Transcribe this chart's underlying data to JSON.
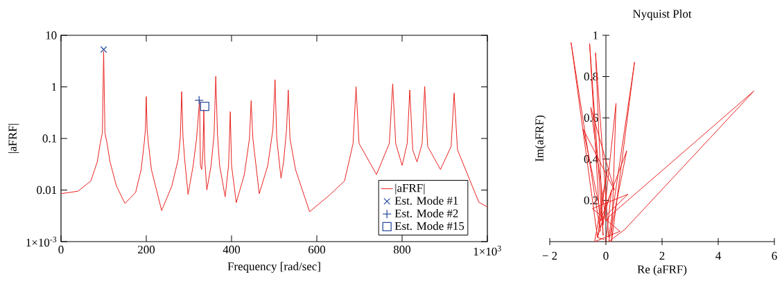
{
  "chart_data": [
    {
      "type": "line",
      "xlabel": "Frequency [rad/sec]",
      "ylabel": "|aFRF|",
      "log": "y",
      "legend": "bottom right",
      "xlim": [
        0,
        1000
      ],
      "ylim": [
        0.001,
        10
      ],
      "xticks": [
        0,
        200,
        400,
        600,
        800,
        {
          "value": 1000,
          "label": "1×10$^{3}$"
        }
      ],
      "yticks": [
        {
          "value": 0.001,
          "label": "1×10$^{-3}$"
        },
        0.01,
        0.1,
        1,
        10
      ],
      "series": [
        {
          "name": "|aFRF|",
          "color": "#e8211d",
          "marker": "none",
          "x": [
            0,
            40,
            70,
            85,
            92,
            97,
            100,
            103,
            108,
            115,
            130,
            150,
            175,
            188,
            195,
            198,
            200,
            202,
            205,
            212,
            236,
            260,
            275,
            280,
            283,
            286,
            290,
            298,
            310,
            318,
            325,
            327,
            330,
            333,
            335,
            337,
            342,
            352,
            359,
            363,
            367,
            372,
            385,
            393,
            397,
            400,
            411,
            430,
            442,
            446,
            450,
            465,
            485,
            497,
            502,
            506,
            516,
            522,
            529,
            533,
            537,
            550,
            583,
            630,
            665,
            685,
            692,
            699,
            740,
            770,
            778,
            785,
            800,
            812,
            818,
            825,
            835,
            847,
            853,
            860,
            890,
            915,
            922,
            930,
            980,
            1000
          ],
          "values": [
            0.0085,
            0.0095,
            0.015,
            0.035,
            0.08,
            0.13,
            4.9,
            0.13,
            0.08,
            0.035,
            0.012,
            0.0055,
            0.009,
            0.025,
            0.08,
            0.15,
            0.65,
            0.15,
            0.08,
            0.025,
            0.004,
            0.012,
            0.04,
            0.11,
            0.81,
            0.11,
            0.04,
            0.0082,
            0.03,
            0.1,
            0.55,
            0.03,
            0.025,
            0.06,
            0.36,
            0.04,
            0.01,
            0.03,
            0.12,
            1.6,
            0.12,
            0.03,
            0.0074,
            0.03,
            0.33,
            0.03,
            0.0057,
            0.02,
            0.1,
            0.54,
            0.1,
            0.0085,
            0.03,
            0.15,
            1.38,
            0.1,
            0.017,
            0.035,
            0.15,
            0.87,
            0.1,
            0.025,
            0.0038,
            0.008,
            0.015,
            0.08,
            1.01,
            0.08,
            0.02,
            0.08,
            1.15,
            0.08,
            0.03,
            0.08,
            0.87,
            0.06,
            0.035,
            0.08,
            1.02,
            0.07,
            0.025,
            0.07,
            0.76,
            0.06,
            0.0058,
            0.0047
          ]
        },
        {
          "name": "Est. Mode #1",
          "type": "scatter",
          "marker": "x",
          "color": "#2b4ea0",
          "x": [
            100
          ],
          "values": [
            5.3
          ]
        },
        {
          "name": "Est. Mode #2",
          "type": "scatter",
          "marker": "cross",
          "color": "#2b4ea0",
          "x": [
            324
          ],
          "values": [
            0.55
          ]
        },
        {
          "name": "Est. Mode #15",
          "type": "scatter",
          "marker": "square",
          "color": "#2b4ea0",
          "x": [
            337
          ],
          "values": [
            0.42
          ]
        }
      ]
    },
    {
      "type": "line",
      "title": "Nyquist Plot",
      "xlabel": "Re (aFRF)",
      "ylabel": "Im(aFRF)",
      "xlim": [
        -2,
        6
      ],
      "ylim": [
        0,
        1
      ],
      "xticks": [
        {
          "value": -2,
          "label": "− 2"
        },
        0,
        2,
        4,
        6
      ],
      "yticks": [
        0.2,
        0.4,
        0.6,
        0.8,
        1
      ],
      "series": [
        {
          "color": "#e8211d",
          "marker": "none",
          "x": [
            -0.05,
            -0.3,
            -1.24,
            -0.2,
            -0.58,
            -0.1,
            -0.37,
            0.1,
            1.02,
            0.2,
            0.36,
            -0.1,
            -0.81,
            0.3,
            -0.54,
            0.0,
            0.1,
            5.27,
            0.68,
            0.1,
            0.74,
            -0.2,
            0.79,
            -0.48,
            0.5,
            -0.4,
            0.05,
            -0.3,
            0.2,
            0.0
          ],
          "values": [
            0.01,
            0.02,
            0.965,
            0.05,
            0.96,
            0.03,
            0.915,
            0.02,
            0.87,
            0.0,
            0.67,
            0.08,
            0.545,
            0.25,
            0.65,
            0.1,
            0.12,
            0.73,
            0.06,
            0.0,
            0.44,
            0.1,
            0.23,
            0.16,
            0.05,
            0.0,
            0.35,
            0.02,
            0.25,
            0.0
          ]
        }
      ]
    }
  ]
}
